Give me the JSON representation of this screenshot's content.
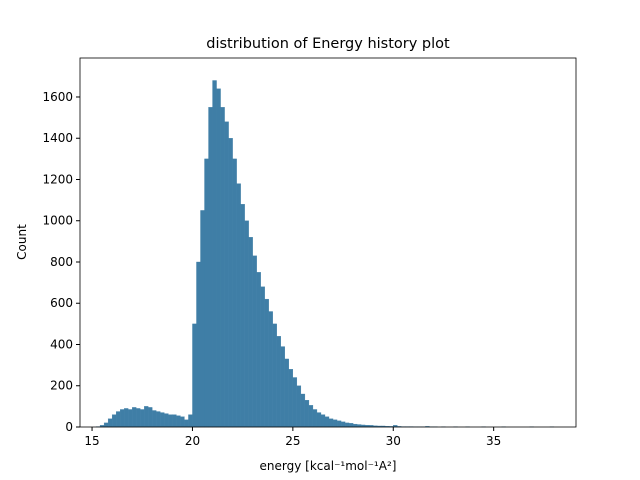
{
  "chart_data": {
    "type": "histogram",
    "title": "distribution of Energy history plot",
    "x_label": "energy [kcal⁻¹mol⁻¹A²]",
    "y_label": "Count",
    "color": "#3f7ea6",
    "bins": [
      15.2,
      15.4,
      15.6,
      15.8,
      16.0,
      16.2,
      16.4,
      16.6,
      16.8,
      17.0,
      17.2,
      17.4,
      17.6,
      17.8,
      18.0,
      18.2,
      18.4,
      18.6,
      18.8,
      19.0,
      19.2,
      19.4,
      19.6,
      19.8,
      20.0,
      20.2,
      20.4,
      20.6,
      20.8,
      21.0,
      21.2,
      21.4,
      21.6,
      21.8,
      22.0,
      22.2,
      22.4,
      22.6,
      22.8,
      23.0,
      23.2,
      23.4,
      23.6,
      23.8,
      24.0,
      24.2,
      24.4,
      24.6,
      24.8,
      25.0,
      25.2,
      25.4,
      25.6,
      25.8,
      26.0,
      26.2,
      26.4,
      26.6,
      26.8,
      27.0,
      27.2,
      27.4,
      27.6,
      27.8,
      28.0,
      28.2,
      28.4,
      28.6,
      28.8,
      29.0,
      29.2,
      29.4,
      29.6,
      29.8,
      30.0,
      30.2,
      30.4,
      30.6,
      30.8,
      31.0,
      31.2,
      31.4,
      31.6,
      31.8,
      32.0,
      32.2,
      32.4,
      32.6,
      32.8,
      33.0,
      33.2,
      33.4,
      33.6,
      33.8,
      34.0,
      34.2,
      34.4,
      34.6,
      34.8,
      35.0,
      35.2,
      35.4,
      35.6,
      35.8,
      36.0,
      36.2,
      36.4,
      36.6,
      36.8,
      37.0,
      37.2,
      37.4,
      37.6,
      37.8,
      38.0
    ],
    "counts": [
      2,
      8,
      20,
      40,
      60,
      75,
      85,
      90,
      85,
      95,
      90,
      85,
      100,
      95,
      80,
      75,
      70,
      65,
      60,
      60,
      55,
      50,
      35,
      60,
      500,
      800,
      1050,
      1300,
      1550,
      1680,
      1640,
      1550,
      1480,
      1400,
      1300,
      1180,
      1080,
      1000,
      920,
      830,
      750,
      680,
      620,
      560,
      500,
      440,
      390,
      330,
      280,
      240,
      200,
      160,
      130,
      105,
      85,
      70,
      60,
      50,
      40,
      35,
      30,
      25,
      20,
      18,
      14,
      12,
      10,
      9,
      8,
      6,
      5,
      5,
      4,
      3,
      8,
      3,
      2,
      2,
      2,
      1,
      1,
      1,
      3,
      1,
      1,
      0,
      1,
      0,
      0,
      1,
      0,
      0,
      1,
      0,
      0,
      0,
      1,
      0,
      0,
      0,
      0,
      1,
      0,
      0,
      0,
      0,
      0,
      0,
      1,
      0,
      0,
      0,
      0,
      1
    ],
    "xlim": [
      14.4,
      39.1
    ],
    "ylim": [
      0,
      1789
    ],
    "xticks": [
      15,
      20,
      25,
      30,
      35
    ],
    "yticks": [
      0,
      200,
      400,
      600,
      800,
      1000,
      1200,
      1400,
      1600
    ]
  }
}
